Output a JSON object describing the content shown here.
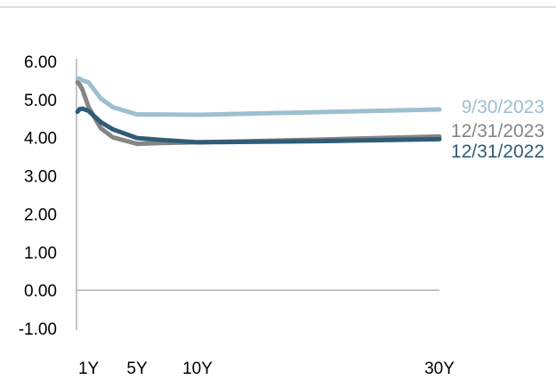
{
  "chart_data": {
    "type": "line",
    "title": "",
    "xlabel": "",
    "ylabel": "",
    "ylim": [
      -1,
      6
    ],
    "xlim": [
      0,
      30
    ],
    "grid": false,
    "legend": "direct labels at right end of lines",
    "y_ticks": [
      "6.00",
      "5.00",
      "4.00",
      "3.00",
      "2.00",
      "1.00",
      "0.00",
      "-1.00"
    ],
    "y_tick_values": [
      6,
      5,
      4,
      3,
      2,
      1,
      0,
      -1
    ],
    "x_ticks": [
      "1Y",
      "5Y",
      "10Y",
      "30Y"
    ],
    "x_tick_values": [
      1,
      5,
      10,
      30
    ],
    "series": [
      {
        "name": "9/30/2023",
        "color": "#9dbfcf",
        "x": [
          0.083,
          0.25,
          0.5,
          1,
          2,
          3,
          5,
          7,
          10,
          20,
          30
        ],
        "y": [
          5.55,
          5.55,
          5.5,
          5.45,
          5.03,
          4.8,
          4.61,
          4.61,
          4.6,
          4.67,
          4.74
        ]
      },
      {
        "name": "12/31/2023",
        "color": "#858585",
        "x": [
          0.083,
          0.25,
          0.5,
          1,
          2,
          3,
          5,
          7,
          10,
          20,
          30
        ],
        "y": [
          5.45,
          5.4,
          5.25,
          4.8,
          4.25,
          4.01,
          3.84,
          3.86,
          3.88,
          3.95,
          4.03
        ]
      },
      {
        "name": "12/31/2022",
        "color": "#2f5c77",
        "x": [
          0.083,
          0.25,
          0.5,
          1,
          2,
          3,
          5,
          7,
          10,
          20,
          30
        ],
        "y": [
          4.68,
          4.75,
          4.76,
          4.7,
          4.41,
          4.22,
          3.99,
          3.94,
          3.88,
          3.91,
          3.96
        ]
      }
    ]
  }
}
